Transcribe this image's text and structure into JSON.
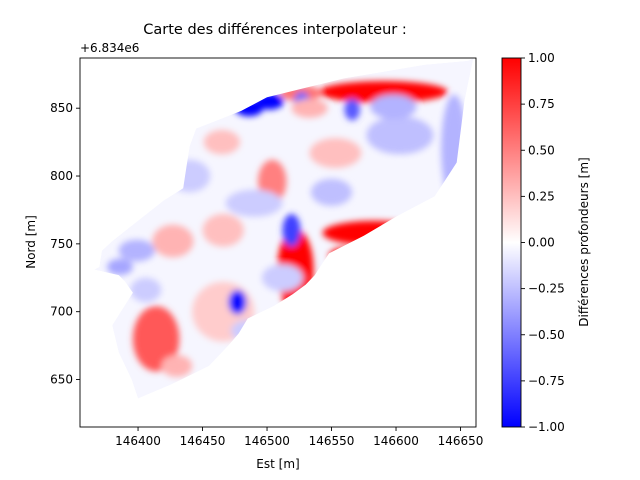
{
  "chart_data": {
    "type": "heatmap",
    "title": "Carte des différences interpolateur :",
    "xlabel": "Est [m]",
    "ylabel": "Nord [m]",
    "y_offset_label": "+6.834e6",
    "xlim": [
      146355,
      146662
    ],
    "ylim": [
      615,
      887
    ],
    "x_ticks": [
      146400,
      146450,
      146500,
      146550,
      146600,
      146650
    ],
    "y_ticks": [
      650,
      700,
      750,
      800,
      850
    ],
    "grid": false,
    "colormap": "bwr",
    "colorbar": {
      "label": "Différences profondeurs [m]",
      "vmin": -1.0,
      "vmax": 1.0,
      "ticks": [
        "−1.00",
        "−0.75",
        "−0.50",
        "−0.25",
        "0.00",
        "0.25",
        "0.50",
        "0.75",
        "1.00"
      ],
      "colors": {
        "low": "#0000ff",
        "mid": "#ffffff",
        "high": "#ff0000"
      }
    },
    "survey_outline": [
      [
        146366,
        731
      ],
      [
        146370,
        733
      ],
      [
        146372,
        745
      ],
      [
        146380,
        752
      ],
      [
        146420,
        782
      ],
      [
        146435,
        791
      ],
      [
        146440,
        822
      ],
      [
        146445,
        835
      ],
      [
        146480,
        848
      ],
      [
        146500,
        858
      ],
      [
        146560,
        872
      ],
      [
        146622,
        882
      ],
      [
        146656,
        885
      ],
      [
        146660,
        887
      ],
      [
        146653,
        855
      ],
      [
        146647,
        810
      ],
      [
        146630,
        785
      ],
      [
        146600,
        770
      ],
      [
        146575,
        756
      ],
      [
        146548,
        743
      ],
      [
        146537,
        727
      ],
      [
        146530,
        720
      ],
      [
        146520,
        713
      ],
      [
        146505,
        704
      ],
      [
        146485,
        695
      ],
      [
        146478,
        684
      ],
      [
        146470,
        675
      ],
      [
        146455,
        660
      ],
      [
        146425,
        646
      ],
      [
        146400,
        636
      ],
      [
        146395,
        650
      ],
      [
        146385,
        670
      ],
      [
        146380,
        690
      ],
      [
        146390,
        705
      ],
      [
        146396,
        714
      ],
      [
        146390,
        722
      ],
      [
        146385,
        727
      ],
      [
        146375,
        729
      ]
    ],
    "anomalies": [
      {
        "x": 146522,
        "y": 731,
        "rx": 14,
        "ry": 30,
        "value": 1.0
      },
      {
        "x": 146583,
        "y": 758,
        "rx": 40,
        "ry": 9,
        "value": 1.0
      },
      {
        "x": 146558,
        "y": 741,
        "rx": 10,
        "ry": 6,
        "value": 1.0
      },
      {
        "x": 146590,
        "y": 862,
        "rx": 50,
        "ry": 8,
        "value": 1.0
      },
      {
        "x": 146526,
        "y": 861,
        "rx": 16,
        "ry": 6,
        "value": 0.55
      },
      {
        "x": 146414,
        "y": 680,
        "rx": 18,
        "ry": 24,
        "value": 0.65
      },
      {
        "x": 146504,
        "y": 796,
        "rx": 11,
        "ry": 16,
        "value": 0.5
      },
      {
        "x": 146427,
        "y": 752,
        "rx": 16,
        "ry": 12,
        "value": 0.3
      },
      {
        "x": 146466,
        "y": 760,
        "rx": 16,
        "ry": 12,
        "value": 0.25
      },
      {
        "x": 146553,
        "y": 817,
        "rx": 20,
        "ry": 11,
        "value": 0.25
      },
      {
        "x": 146466,
        "y": 700,
        "rx": 24,
        "ry": 22,
        "value": 0.2
      },
      {
        "x": 146465,
        "y": 825,
        "rx": 14,
        "ry": 9,
        "value": 0.25
      },
      {
        "x": 146486,
        "y": 850,
        "rx": 11,
        "ry": 6,
        "value": -1.0
      },
      {
        "x": 146502,
        "y": 855,
        "rx": 11,
        "ry": 6,
        "value": -1.0
      },
      {
        "x": 146477,
        "y": 707,
        "rx": 7,
        "ry": 9,
        "value": -0.95
      },
      {
        "x": 146519,
        "y": 760,
        "rx": 7,
        "ry": 12,
        "value": -0.75
      },
      {
        "x": 146566,
        "y": 849,
        "rx": 6,
        "ry": 8,
        "value": -0.65
      },
      {
        "x": 146527,
        "y": 856,
        "rx": 6,
        "ry": 6,
        "value": -0.6
      },
      {
        "x": 146452,
        "y": 854,
        "rx": 10,
        "ry": 7,
        "value": -0.45
      },
      {
        "x": 146533,
        "y": 850,
        "rx": 14,
        "ry": 7,
        "value": 0.3
      },
      {
        "x": 146645,
        "y": 820,
        "rx": 10,
        "ry": 40,
        "value": -0.3
      },
      {
        "x": 146603,
        "y": 830,
        "rx": 26,
        "ry": 14,
        "value": -0.25
      },
      {
        "x": 146598,
        "y": 851,
        "rx": 18,
        "ry": 9,
        "value": -0.3
      },
      {
        "x": 146550,
        "y": 788,
        "rx": 16,
        "ry": 10,
        "value": -0.25
      },
      {
        "x": 146490,
        "y": 780,
        "rx": 22,
        "ry": 10,
        "value": -0.2
      },
      {
        "x": 146399,
        "y": 745,
        "rx": 14,
        "ry": 8,
        "value": -0.3
      },
      {
        "x": 146440,
        "y": 800,
        "rx": 16,
        "ry": 12,
        "value": -0.2
      },
      {
        "x": 146512,
        "y": 725,
        "rx": 16,
        "ry": 10,
        "value": -0.2
      },
      {
        "x": 146386,
        "y": 733,
        "rx": 10,
        "ry": 6,
        "value": -0.35
      },
      {
        "x": 146486,
        "y": 686,
        "rx": 14,
        "ry": 8,
        "value": -0.2
      },
      {
        "x": 146406,
        "y": 716,
        "rx": 12,
        "ry": 9,
        "value": -0.2
      },
      {
        "x": 146430,
        "y": 660,
        "rx": 12,
        "ry": 8,
        "value": 0.3
      }
    ]
  }
}
